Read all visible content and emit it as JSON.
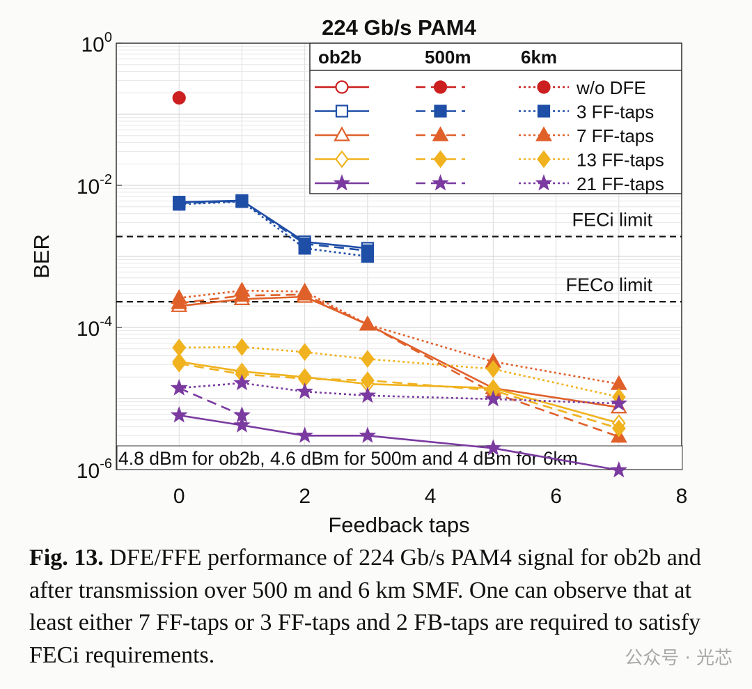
{
  "chart_data": {
    "type": "line",
    "title": "224 Gb/s PAM4",
    "xlabel": "Feedback taps",
    "ylabel": "BER",
    "xlim": [
      -1,
      8
    ],
    "ylim": [
      1e-06,
      1
    ],
    "yscale": "log",
    "grid": true,
    "x_ticks": [
      "0",
      "2",
      "4",
      "6",
      "8"
    ],
    "x_tick_values": [
      0,
      2,
      4,
      6,
      8
    ],
    "y_ticks": [
      {
        "base": "10",
        "exp": "0",
        "value": 1
      },
      {
        "base": "10",
        "exp": "-2",
        "value": 0.01
      },
      {
        "base": "10",
        "exp": "-4",
        "value": 0.0001
      },
      {
        "base": "10",
        "exp": "-6",
        "value": 1e-06
      }
    ],
    "legend": {
      "placement": "top-right",
      "headers": [
        "ob2b",
        "500m",
        "6km"
      ],
      "entries": [
        "w/o DFE",
        "3 FF-taps",
        "7 FF-taps",
        "13 FF-taps",
        "21 FF-taps"
      ]
    },
    "reference_lines": [
      {
        "label": "FECi limit",
        "y": 0.0019
      },
      {
        "label": "FECo limit",
        "y": 0.00023
      }
    ],
    "annotation": "4.8 dBm for ob2b, 4.6 dBm for 500m and 4 dBm for 6km",
    "colors": {
      "w/o DFE": "#cc1f1f",
      "3 FF-taps": "#1f4ea6",
      "7 FF-taps": "#e0602a",
      "13 FF-taps": "#f0b21e",
      "21 FF-taps": "#7a3aa0"
    },
    "series": [
      {
        "group": "w/o DFE",
        "link": "6km",
        "style": "dotted",
        "marker": "circle-filled",
        "x": [
          0
        ],
        "y": [
          0.17
        ]
      },
      {
        "group": "3 FF-taps",
        "link": "ob2b",
        "style": "solid",
        "marker": "square-open",
        "x": [
          0,
          1,
          2,
          3
        ],
        "y": [
          0.0058,
          0.0061,
          0.0016,
          0.0013
        ]
      },
      {
        "group": "3 FF-taps",
        "link": "500m",
        "style": "dashed",
        "marker": "square-filled",
        "x": [
          0,
          1,
          2,
          3
        ],
        "y": [
          0.0056,
          0.006,
          0.0015,
          0.0012
        ]
      },
      {
        "group": "3 FF-taps",
        "link": "6km",
        "style": "dotted",
        "marker": "square-filled",
        "x": [
          0,
          1,
          2,
          3
        ],
        "y": [
          0.0054,
          0.0059,
          0.0013,
          0.001
        ]
      },
      {
        "group": "7 FF-taps",
        "link": "ob2b",
        "style": "solid",
        "marker": "triangle-open",
        "x": [
          0,
          1,
          2,
          3,
          5,
          7
        ],
        "y": [
          0.0002,
          0.00025,
          0.00027,
          0.00011,
          1.4e-05,
          7.5e-06
        ]
      },
      {
        "group": "7 FF-taps",
        "link": "500m",
        "style": "dashed",
        "marker": "triangle-filled",
        "x": [
          0,
          1,
          2,
          3,
          5,
          7
        ],
        "y": [
          0.00022,
          0.00028,
          0.00029,
          0.00011,
          1.2e-05,
          2.9e-06
        ]
      },
      {
        "group": "7 FF-taps",
        "link": "6km",
        "style": "dotted",
        "marker": "triangle-filled",
        "x": [
          0,
          1,
          2,
          3,
          5,
          7
        ],
        "y": [
          0.00026,
          0.00033,
          0.00032,
          0.00011,
          3.3e-05,
          1.6e-05
        ]
      },
      {
        "group": "13 FF-taps",
        "link": "ob2b",
        "style": "solid",
        "marker": "diamond-open",
        "x": [
          0,
          1,
          2,
          3,
          5,
          7
        ],
        "y": [
          3.3e-05,
          2.4e-05,
          2e-05,
          1.6e-05,
          1.4e-05,
          4.5e-06
        ]
      },
      {
        "group": "13 FF-taps",
        "link": "500m",
        "style": "dashed",
        "marker": "diamond-filled",
        "x": [
          0,
          1,
          2,
          3,
          5,
          7
        ],
        "y": [
          3.1e-05,
          2.2e-05,
          1.9e-05,
          1.8e-05,
          1.3e-05,
          3.8e-06
        ]
      },
      {
        "group": "13 FF-taps",
        "link": "6km",
        "style": "dotted",
        "marker": "diamond-filled",
        "x": [
          0,
          1,
          2,
          3,
          5,
          7
        ],
        "y": [
          5.2e-05,
          5.3e-05,
          4.5e-05,
          3.6e-05,
          2.6e-05,
          1.05e-05
        ]
      },
      {
        "group": "21 FF-taps",
        "link": "ob2b",
        "style": "solid",
        "marker": "star",
        "x": [
          0,
          1,
          2,
          3,
          5,
          7
        ],
        "y": [
          5.8e-06,
          4.2e-06,
          3e-06,
          3e-06,
          2e-06,
          9.8e-07
        ]
      },
      {
        "group": "21 FF-taps",
        "link": "500m",
        "style": "dashed",
        "marker": "star",
        "x": [
          0,
          1
        ],
        "y": [
          1.4e-05,
          5.8e-06
        ]
      },
      {
        "group": "21 FF-taps",
        "link": "6km",
        "style": "dotted",
        "marker": "star",
        "x": [
          0,
          1,
          2,
          3,
          5,
          7
        ],
        "y": [
          1.4e-05,
          1.65e-05,
          1.25e-05,
          1.1e-05,
          9.8e-06,
          8.5e-06
        ]
      }
    ]
  },
  "caption": {
    "label": "Fig. 13.",
    "text": " DFE/FFE performance of 224 Gb/s PAM4 signal for ob2b and after transmission over 500 m and 6 km SMF. One can observe that at least either 7 FF-taps or 3 FF-taps and 2 FB-taps are required to satisfy FECi requirements."
  },
  "watermark": "公众号 · 光芯"
}
